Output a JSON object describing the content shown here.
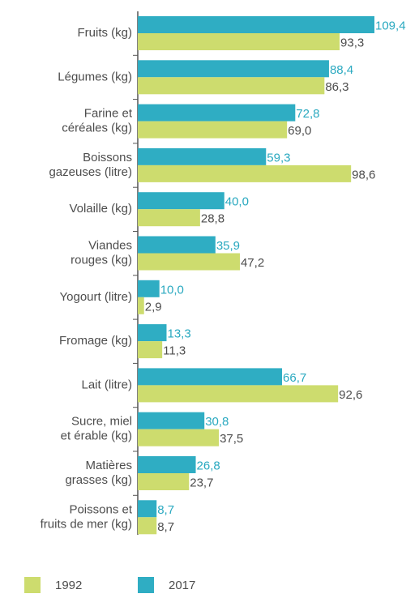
{
  "chart_data": {
    "type": "bar",
    "orientation": "horizontal",
    "categories": [
      "Fruits (kg)",
      "Légumes (kg)",
      "Farine et\ncéréales (kg)",
      "Boissons\ngazeuses (litre)",
      "Volaille (kg)",
      "Viandes\nrouges (kg)",
      "Yogourt (litre)",
      "Fromage (kg)",
      "Lait (litre)",
      "Sucre, miel\net érable (kg)",
      "Matières\ngrasses (kg)",
      "Poissons et\nfruits de mer (kg)"
    ],
    "series": [
      {
        "name": "1992",
        "color": "#cddc6e",
        "label_color": "#4d4d4d",
        "values": [
          93.3,
          86.3,
          69.0,
          98.6,
          28.8,
          47.2,
          2.9,
          11.3,
          92.6,
          37.5,
          23.7,
          8.7
        ],
        "value_labels": [
          "93,3",
          "86,3",
          "69,0",
          "98,6",
          "28,8",
          "47,2",
          "2,9",
          "11,3",
          "92,6",
          "37,5",
          "23,7",
          "8,7"
        ]
      },
      {
        "name": "2017",
        "color": "#2fadc3",
        "label_color": "#2aa9c0",
        "values": [
          109.4,
          88.4,
          72.8,
          59.3,
          40.0,
          35.9,
          10.0,
          13.3,
          66.7,
          30.8,
          26.8,
          8.7
        ],
        "value_labels": [
          "109,4",
          "88,4",
          "72,8",
          "59,3",
          "40,0",
          "35,9",
          "10,0",
          "13,3",
          "66,7",
          "30,8",
          "26,8",
          "8,7"
        ]
      }
    ],
    "legend": "bottom"
  }
}
